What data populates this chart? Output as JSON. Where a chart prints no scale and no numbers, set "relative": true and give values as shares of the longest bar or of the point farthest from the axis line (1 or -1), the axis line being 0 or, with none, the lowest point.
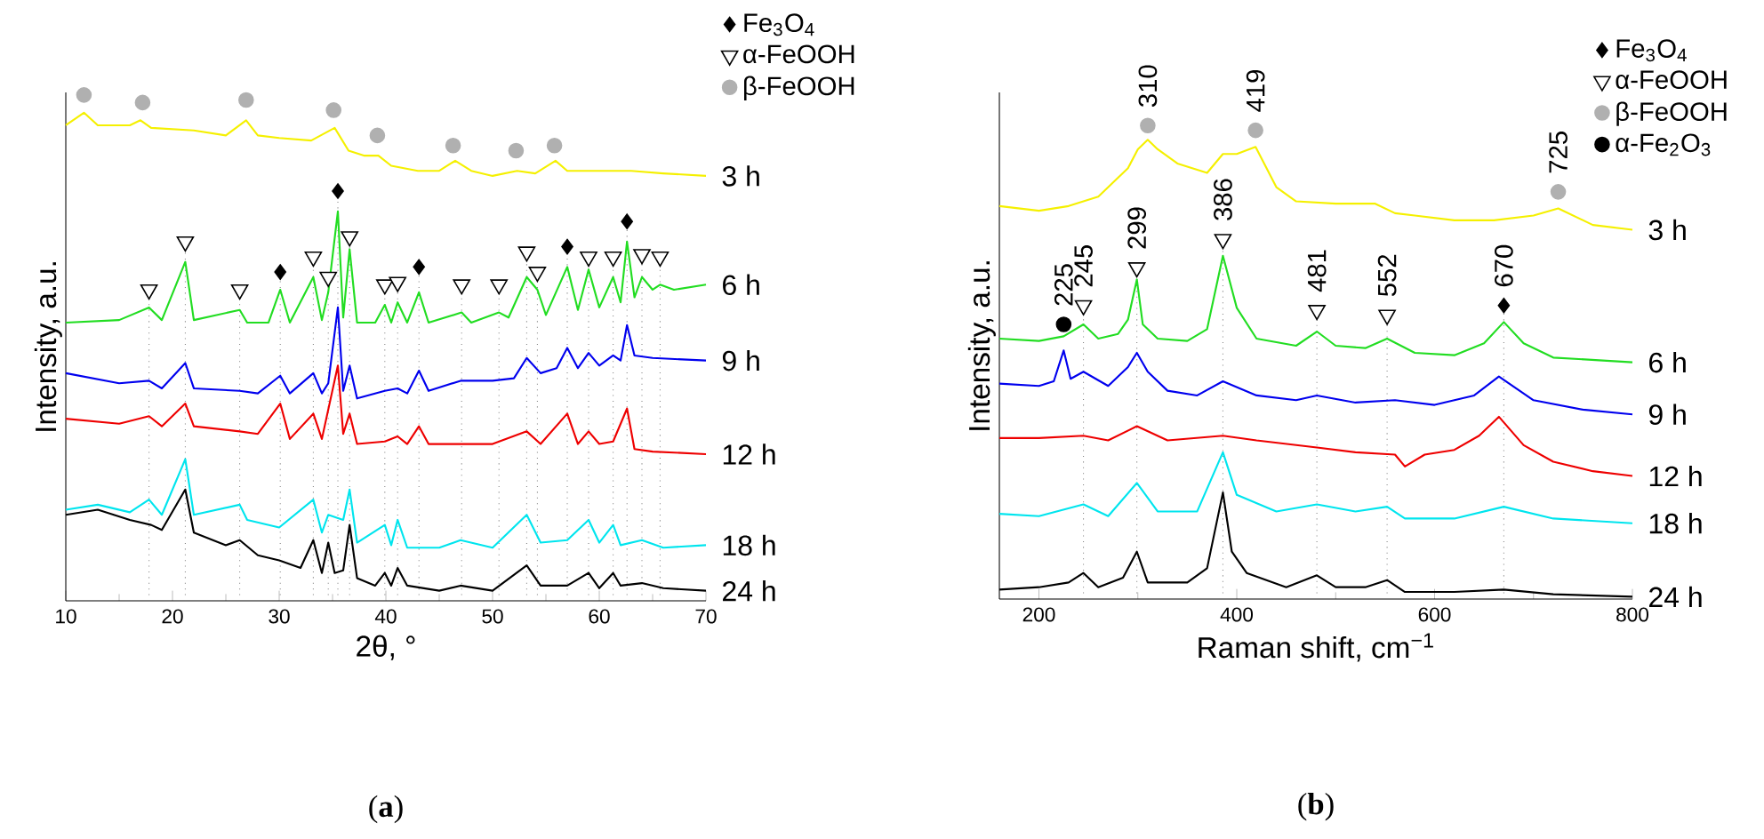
{
  "chart_data": [
    {
      "type": "line",
      "relative": true,
      "xlabel": "2θ, °",
      "ylabel": "Intensity, a.u.",
      "xlim": [
        10,
        70
      ],
      "xticks": [
        10,
        20,
        30,
        40,
        50,
        60,
        70
      ],
      "legend": "top right",
      "annotations": [
        "(**a**)"
      ],
      "ref_lines": [
        {
          "axis": "x",
          "value": 17.8,
          "color": "#808080",
          "line_style": "dotted"
        },
        {
          "axis": "x",
          "value": 21.2,
          "color": "#808080",
          "line_style": "dotted"
        },
        {
          "axis": "x",
          "value": 26.3,
          "color": "#808080",
          "line_style": "dotted"
        },
        {
          "axis": "x",
          "value": 30.1,
          "color": "#808080",
          "line_style": "dotted"
        },
        {
          "axis": "x",
          "value": 33.2,
          "color": "#808080",
          "line_style": "dotted"
        },
        {
          "axis": "x",
          "value": 34.6,
          "color": "#808080",
          "line_style": "dotted"
        },
        {
          "axis": "x",
          "value": 35.5,
          "color": "#808080",
          "line_style": "dotted"
        },
        {
          "axis": "x",
          "value": 36.6,
          "color": "#808080",
          "line_style": "dotted"
        },
        {
          "axis": "x",
          "value": 39.9,
          "color": "#808080",
          "line_style": "dotted"
        },
        {
          "axis": "x",
          "value": 41.1,
          "color": "#808080",
          "line_style": "dotted"
        },
        {
          "axis": "x",
          "value": 43.1,
          "color": "#808080",
          "line_style": "dotted"
        },
        {
          "axis": "x",
          "value": 47.1,
          "color": "#808080",
          "line_style": "dotted"
        },
        {
          "axis": "x",
          "value": 50.6,
          "color": "#808080",
          "line_style": "dotted"
        },
        {
          "axis": "x",
          "value": 53.2,
          "color": "#808080",
          "line_style": "dotted"
        },
        {
          "axis": "x",
          "value": 54.2,
          "color": "#808080",
          "line_style": "dotted"
        },
        {
          "axis": "x",
          "value": 57.0,
          "color": "#808080",
          "line_style": "dotted"
        },
        {
          "axis": "x",
          "value": 59.0,
          "color": "#808080",
          "line_style": "dotted"
        },
        {
          "axis": "x",
          "value": 61.3,
          "color": "#808080",
          "line_style": "dotted"
        },
        {
          "axis": "x",
          "value": 62.6,
          "color": "#808080",
          "line_style": "dotted"
        },
        {
          "axis": "x",
          "value": 64.0,
          "color": "#808080",
          "line_style": "dotted"
        },
        {
          "axis": "x",
          "value": 65.7,
          "color": "#808080",
          "line_style": "dotted"
        }
      ],
      "series": [
        {
          "name": "3 h",
          "color": "#f5f000",
          "x": [
            10,
            11.7,
            13,
            16,
            17,
            18,
            22,
            25,
            26.9,
            28,
            30,
            33,
            35.2,
            36.5,
            38,
            39.3,
            40.5,
            43,
            45,
            46.5,
            48,
            50,
            52.3,
            54,
            55.9,
            57,
            60,
            63,
            66,
            70
          ],
          "values": [
            0.94,
            0.965,
            0.94,
            0.94,
            0.95,
            0.935,
            0.93,
            0.92,
            0.95,
            0.92,
            0.915,
            0.91,
            0.935,
            0.89,
            0.88,
            0.88,
            0.86,
            0.85,
            0.85,
            0.87,
            0.85,
            0.84,
            0.85,
            0.845,
            0.87,
            0.85,
            0.85,
            0.85,
            0.845,
            0.84
          ]
        },
        {
          "name": "6 h",
          "color": "#22dd22",
          "x": [
            10,
            15,
            17.8,
            19,
            21.2,
            22,
            26.3,
            27,
            29,
            30.1,
            31,
            33.2,
            34,
            34.6,
            35.5,
            36,
            36.6,
            37.3,
            39,
            39.9,
            40.5,
            41.1,
            42,
            43.1,
            44,
            47.1,
            48,
            50.6,
            51.5,
            53.2,
            54.2,
            55,
            57,
            58,
            59,
            60,
            61.3,
            62,
            62.6,
            63.3,
            64,
            65,
            65.7,
            67,
            70
          ],
          "values": [
            0.55,
            0.555,
            0.58,
            0.555,
            0.67,
            0.555,
            0.575,
            0.55,
            0.55,
            0.615,
            0.55,
            0.64,
            0.555,
            0.61,
            0.77,
            0.56,
            0.695,
            0.55,
            0.55,
            0.585,
            0.55,
            0.59,
            0.55,
            0.61,
            0.55,
            0.57,
            0.55,
            0.57,
            0.56,
            0.64,
            0.615,
            0.565,
            0.66,
            0.575,
            0.655,
            0.58,
            0.64,
            0.59,
            0.71,
            0.6,
            0.64,
            0.615,
            0.625,
            0.615,
            0.625
          ]
        },
        {
          "name": "9 h",
          "color": "#0000ee",
          "x": [
            10,
            15,
            17.8,
            19,
            21.2,
            22,
            26.3,
            28,
            30.1,
            31,
            33.2,
            34,
            34.6,
            35.5,
            36,
            36.6,
            37.3,
            39.9,
            41.1,
            42,
            43.1,
            44,
            47,
            50,
            52,
            53.2,
            54.5,
            56,
            57,
            58,
            59,
            60,
            61.3,
            62,
            62.6,
            63.3,
            65,
            70
          ],
          "values": [
            0.45,
            0.43,
            0.435,
            0.42,
            0.47,
            0.42,
            0.415,
            0.41,
            0.445,
            0.41,
            0.45,
            0.41,
            0.43,
            0.58,
            0.415,
            0.465,
            0.4,
            0.415,
            0.42,
            0.41,
            0.455,
            0.415,
            0.435,
            0.435,
            0.44,
            0.48,
            0.45,
            0.46,
            0.5,
            0.46,
            0.49,
            0.465,
            0.485,
            0.475,
            0.545,
            0.485,
            0.48,
            0.475
          ]
        },
        {
          "name": "12 h",
          "color": "#ee0000",
          "x": [
            10,
            15,
            17.8,
            19,
            21.2,
            22,
            26.3,
            28,
            30.1,
            31,
            33.2,
            34,
            35.5,
            36,
            36.6,
            37.3,
            39.9,
            41.1,
            42,
            43.1,
            44,
            47,
            50,
            53.2,
            54.5,
            57,
            58,
            59,
            60,
            61.3,
            62.6,
            63.3,
            65,
            70
          ],
          "values": [
            0.36,
            0.35,
            0.365,
            0.345,
            0.39,
            0.345,
            0.335,
            0.33,
            0.39,
            0.32,
            0.37,
            0.32,
            0.465,
            0.33,
            0.37,
            0.31,
            0.315,
            0.325,
            0.31,
            0.345,
            0.31,
            0.31,
            0.31,
            0.335,
            0.31,
            0.37,
            0.31,
            0.335,
            0.31,
            0.315,
            0.38,
            0.3,
            0.295,
            0.29
          ]
        },
        {
          "name": "18 h",
          "color": "#00e5ee",
          "x": [
            10,
            13,
            16,
            17.8,
            19,
            21.2,
            22,
            26.3,
            27,
            30,
            33.2,
            34,
            34.6,
            36,
            36.6,
            37.3,
            39.9,
            40.5,
            41.1,
            42,
            45,
            47,
            50,
            53.2,
            54.5,
            57,
            59,
            60,
            61.3,
            62,
            64,
            66,
            70
          ],
          "values": [
            0.18,
            0.19,
            0.175,
            0.2,
            0.17,
            0.28,
            0.17,
            0.19,
            0.16,
            0.145,
            0.2,
            0.135,
            0.17,
            0.16,
            0.22,
            0.115,
            0.15,
            0.11,
            0.16,
            0.105,
            0.105,
            0.12,
            0.105,
            0.17,
            0.115,
            0.12,
            0.16,
            0.115,
            0.15,
            0.11,
            0.12,
            0.105,
            0.11
          ]
        },
        {
          "name": "24 h",
          "color": "#000000",
          "x": [
            10,
            13,
            16,
            18,
            19,
            21.2,
            22,
            25,
            26.3,
            28,
            30,
            32,
            33.2,
            34,
            34.6,
            35.2,
            36,
            36.6,
            37.3,
            39,
            39.9,
            40.5,
            41.1,
            42,
            45,
            47,
            50,
            53.2,
            54.5,
            57,
            59,
            60,
            61.3,
            62,
            64,
            66,
            70
          ],
          "values": [
            0.17,
            0.18,
            0.16,
            0.15,
            0.14,
            0.22,
            0.135,
            0.11,
            0.12,
            0.09,
            0.08,
            0.065,
            0.12,
            0.055,
            0.115,
            0.055,
            0.06,
            0.15,
            0.045,
            0.03,
            0.055,
            0.03,
            0.065,
            0.03,
            0.02,
            0.03,
            0.02,
            0.07,
            0.03,
            0.03,
            0.055,
            0.025,
            0.055,
            0.03,
            0.035,
            0.025,
            0.02
          ]
        },
        {
          "name": "Fe$_{3}$O$_{4}$",
          "type": "scatter",
          "marker": "diamond",
          "color": "#000000",
          "x": [
            30.1,
            35.5,
            43.1,
            57.0,
            62.6
          ],
          "values": [
            0.65,
            0.81,
            0.66,
            0.7,
            0.75
          ]
        },
        {
          "name": "α-FeOOH",
          "type": "scatter",
          "marker": "triangle",
          "color": "#000000",
          "x": [
            17.8,
            21.2,
            26.3,
            33.2,
            34.6,
            36.6,
            39.9,
            41.1,
            47.1,
            50.6,
            53.2,
            54.2,
            59.0,
            61.3,
            64.0,
            65.7
          ],
          "values": [
            0.615,
            0.71,
            0.615,
            0.68,
            0.64,
            0.72,
            0.625,
            0.63,
            0.625,
            0.625,
            0.69,
            0.65,
            0.68,
            0.68,
            0.685,
            0.68
          ]
        },
        {
          "name": "β-FeOOH",
          "type": "scatter",
          "marker": "circle",
          "color": "#b0b0b0",
          "x": [
            11.7,
            17.2,
            26.9,
            35.1,
            39.2,
            46.3,
            52.2,
            55.8
          ],
          "values": [
            1.0,
            0.985,
            0.99,
            0.97,
            0.92,
            0.9,
            0.89,
            0.9
          ]
        }
      ]
    },
    {
      "type": "line",
      "relative": true,
      "xlabel": "Raman shift, cm$^{−1}$",
      "ylabel": "Intensity, a.u.",
      "xlim": [
        160,
        800
      ],
      "xticks": [
        200,
        400,
        600,
        800
      ],
      "legend": "top right",
      "annotations": [
        "(**b**)",
        {
          "text": "225",
          "x": 225,
          "y": 0.58
        },
        {
          "text": "245",
          "x": 245,
          "y": 0.62
        },
        {
          "text": "299",
          "x": 299,
          "y": 0.7
        },
        {
          "text": "310",
          "x": 310,
          "y": 1.0
        },
        {
          "text": "386",
          "x": 386,
          "y": 0.76
        },
        {
          "text": "419",
          "x": 419,
          "y": 0.99
        },
        {
          "text": "481",
          "x": 481,
          "y": 0.61
        },
        {
          "text": "552",
          "x": 552,
          "y": 0.6
        },
        {
          "text": "670",
          "x": 670,
          "y": 0.62
        },
        {
          "text": "725",
          "x": 725,
          "y": 0.86
        }
      ],
      "ref_lines": [
        {
          "axis": "x",
          "value": 245,
          "color": "#808080",
          "line_style": "dotted"
        },
        {
          "axis": "x",
          "value": 299,
          "color": "#808080",
          "line_style": "dotted"
        },
        {
          "axis": "x",
          "value": 386,
          "color": "#808080",
          "line_style": "dotted"
        },
        {
          "axis": "x",
          "value": 481,
          "color": "#808080",
          "line_style": "dotted"
        },
        {
          "axis": "x",
          "value": 552,
          "color": "#808080",
          "line_style": "dotted"
        },
        {
          "axis": "x",
          "value": 670,
          "color": "#808080",
          "line_style": "dotted"
        }
      ],
      "series": [
        {
          "name": "3 h",
          "color": "#f5f000",
          "x": [
            160,
            200,
            230,
            260,
            290,
            300,
            310,
            320,
            340,
            370,
            386,
            400,
            419,
            440,
            460,
            500,
            540,
            560,
            580,
            620,
            660,
            700,
            725,
            760,
            800
          ],
          "values": [
            0.83,
            0.82,
            0.83,
            0.85,
            0.91,
            0.95,
            0.97,
            0.95,
            0.92,
            0.9,
            0.94,
            0.94,
            0.955,
            0.87,
            0.84,
            0.835,
            0.835,
            0.815,
            0.81,
            0.8,
            0.8,
            0.81,
            0.825,
            0.79,
            0.78
          ]
        },
        {
          "name": "6 h",
          "color": "#22dd22",
          "x": [
            160,
            200,
            225,
            245,
            260,
            280,
            290,
            299,
            305,
            320,
            350,
            370,
            386,
            400,
            420,
            460,
            481,
            500,
            530,
            552,
            580,
            620,
            650,
            670,
            690,
            720,
            800
          ],
          "values": [
            0.55,
            0.545,
            0.555,
            0.58,
            0.55,
            0.56,
            0.59,
            0.675,
            0.58,
            0.55,
            0.545,
            0.57,
            0.725,
            0.615,
            0.55,
            0.535,
            0.565,
            0.535,
            0.53,
            0.55,
            0.52,
            0.515,
            0.54,
            0.585,
            0.54,
            0.51,
            0.5
          ]
        },
        {
          "name": "9 h",
          "color": "#0000ee",
          "x": [
            160,
            200,
            215,
            225,
            232,
            245,
            270,
            290,
            299,
            310,
            330,
            360,
            386,
            420,
            460,
            481,
            520,
            560,
            600,
            640,
            665,
            700,
            750,
            800
          ],
          "values": [
            0.455,
            0.45,
            0.46,
            0.525,
            0.465,
            0.48,
            0.45,
            0.49,
            0.52,
            0.48,
            0.44,
            0.43,
            0.46,
            0.43,
            0.42,
            0.43,
            0.415,
            0.42,
            0.41,
            0.43,
            0.47,
            0.42,
            0.4,
            0.39
          ]
        },
        {
          "name": "12 h",
          "color": "#ee0000",
          "x": [
            160,
            200,
            245,
            270,
            299,
            330,
            386,
            420,
            481,
            520,
            560,
            570,
            590,
            620,
            645,
            665,
            690,
            720,
            760,
            800
          ],
          "values": [
            0.34,
            0.34,
            0.345,
            0.335,
            0.365,
            0.335,
            0.345,
            0.335,
            0.32,
            0.31,
            0.305,
            0.28,
            0.305,
            0.315,
            0.345,
            0.385,
            0.325,
            0.29,
            0.27,
            0.26
          ]
        },
        {
          "name": "18 h",
          "color": "#00e5ee",
          "x": [
            160,
            200,
            245,
            270,
            299,
            320,
            360,
            386,
            400,
            440,
            481,
            520,
            552,
            570,
            620,
            670,
            720,
            800
          ],
          "values": [
            0.18,
            0.175,
            0.2,
            0.175,
            0.245,
            0.185,
            0.185,
            0.31,
            0.22,
            0.185,
            0.2,
            0.185,
            0.195,
            0.17,
            0.17,
            0.195,
            0.17,
            0.16
          ]
        },
        {
          "name": "24 h",
          "color": "#000000",
          "x": [
            160,
            200,
            230,
            245,
            260,
            285,
            299,
            310,
            350,
            370,
            386,
            395,
            410,
            450,
            481,
            500,
            530,
            552,
            570,
            620,
            670,
            720,
            800
          ],
          "values": [
            0.02,
            0.025,
            0.035,
            0.055,
            0.025,
            0.045,
            0.1,
            0.035,
            0.035,
            0.065,
            0.225,
            0.1,
            0.055,
            0.025,
            0.05,
            0.025,
            0.025,
            0.04,
            0.015,
            0.015,
            0.02,
            0.01,
            0.005
          ]
        },
        {
          "name": "Fe$_{3}$O$_{4}$",
          "type": "scatter",
          "marker": "diamond",
          "color": "#000000",
          "x": [
            670
          ],
          "values": [
            0.62
          ]
        },
        {
          "name": "α-FeOOH",
          "type": "scatter",
          "marker": "triangle",
          "color": "#000000",
          "x": [
            245,
            299,
            386,
            481,
            552
          ],
          "values": [
            0.62,
            0.7,
            0.76,
            0.61,
            0.6
          ]
        },
        {
          "name": "β-FeOOH",
          "type": "scatter",
          "marker": "circle",
          "color": "#b0b0b0",
          "x": [
            310,
            419,
            725
          ],
          "values": [
            1.0,
            0.99,
            0.86
          ]
        },
        {
          "name": "α-Fe$_{2}$O$_{3}$",
          "type": "scatter",
          "marker": "circle",
          "color": "#000000",
          "x": [
            225
          ],
          "values": [
            0.58
          ]
        }
      ]
    }
  ]
}
